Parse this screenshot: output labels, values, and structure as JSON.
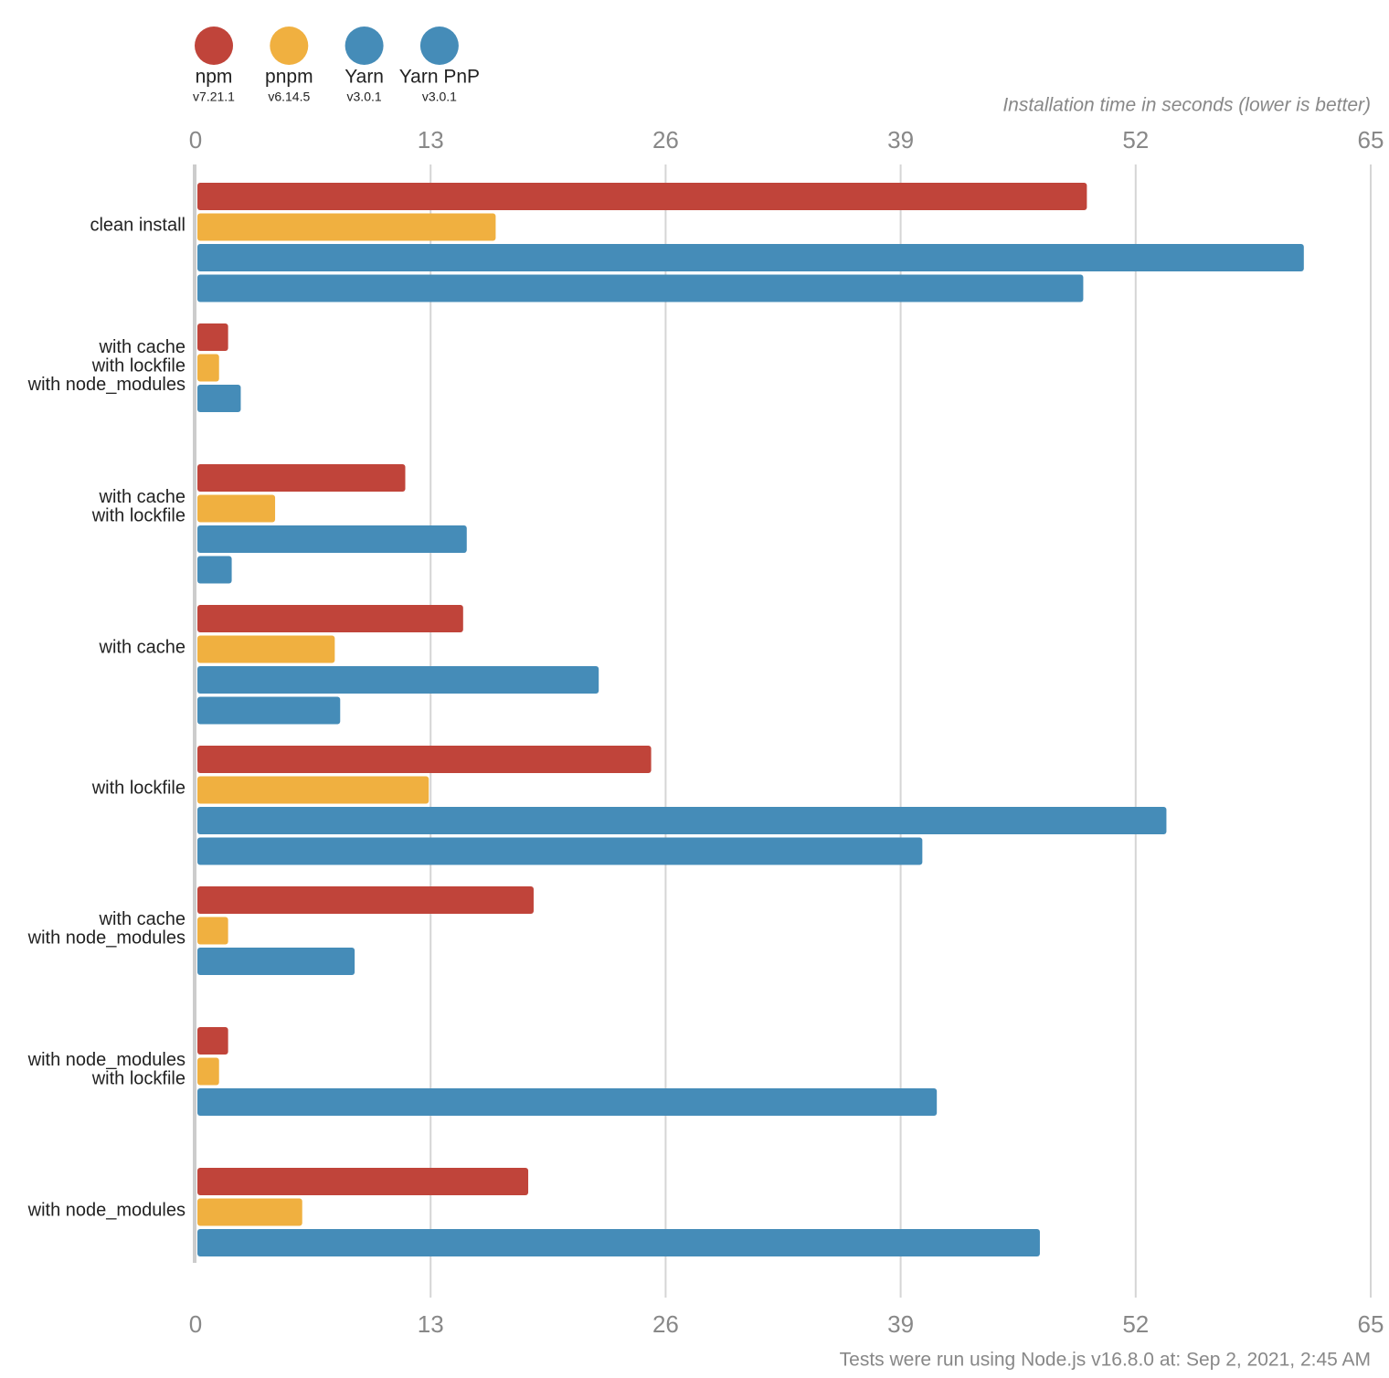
{
  "chart_data": {
    "type": "bar",
    "orientation": "horizontal",
    "xlabel": "Installation time in seconds (lower is better)",
    "footnote": "Tests were run using Node.js v16.8.0 at: Sep 2, 2021, 2:45 AM",
    "categories": [
      [
        "clean install"
      ],
      [
        "with cache",
        "with lockfile",
        "with node_modules"
      ],
      [
        "with cache",
        "with lockfile"
      ],
      [
        "with cache"
      ],
      [
        "with lockfile"
      ],
      [
        "with cache",
        "with node_modules"
      ],
      [
        "with node_modules",
        "with lockfile"
      ],
      [
        "with node_modules"
      ]
    ],
    "series": [
      {
        "name": "npm",
        "version": "v7.21.1",
        "color": "#c0443a",
        "values": [
          49.3,
          1.8,
          11.6,
          14.8,
          25.2,
          18.7,
          1.8,
          18.4
        ]
      },
      {
        "name": "pnpm",
        "version": "v6.14.5",
        "color": "#f0b040",
        "values": [
          16.6,
          1.3,
          4.4,
          7.7,
          12.9,
          1.8,
          1.3,
          5.9
        ]
      },
      {
        "name": "Yarn",
        "version": "v3.0.1",
        "color": "#458cb8",
        "values": [
          61.3,
          2.5,
          15.0,
          22.3,
          53.7,
          8.8,
          41.0,
          46.7
        ]
      },
      {
        "name": "Yarn PnP",
        "version": "v3.0.1",
        "color": "#458cb8",
        "values": [
          49.1,
          null,
          2.0,
          8.0,
          40.2,
          null,
          null,
          null
        ]
      }
    ],
    "xlim": [
      0,
      65
    ],
    "xticks": [
      0,
      13,
      26,
      39,
      52,
      65
    ],
    "grid": true
  }
}
